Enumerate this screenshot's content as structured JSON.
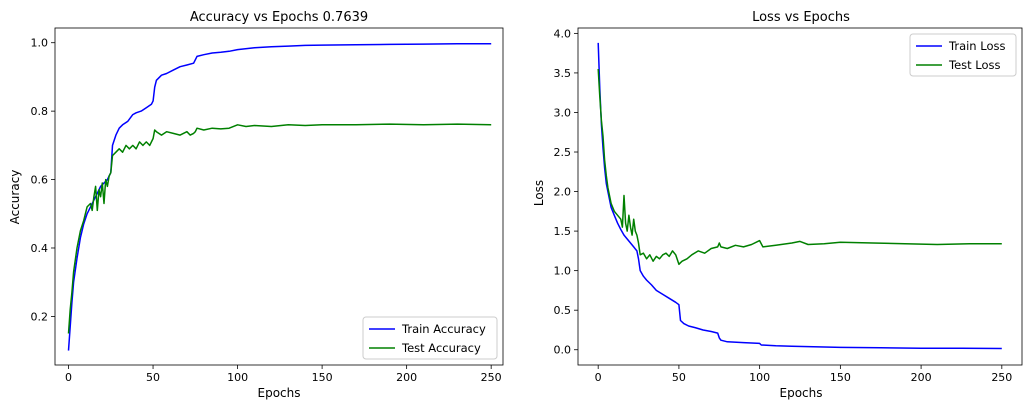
{
  "chart_data": [
    {
      "type": "line",
      "title": "Accuracy vs Epochs 0.7639",
      "xlabel": "Epochs",
      "ylabel": "Accuracy",
      "xlim": [
        -8,
        257
      ],
      "ylim": [
        0.058,
        1.043
      ],
      "xticks": [
        0,
        50,
        100,
        150,
        200,
        250
      ],
      "yticks": [
        0.2,
        0.4,
        0.6,
        0.8,
        1.0
      ],
      "ytick_labels": [
        "0.2",
        "0.4",
        "0.6",
        "0.8",
        "1.0"
      ],
      "grid": false,
      "legend": "lower-right",
      "series": [
        {
          "name": "Train Accuracy",
          "color": "#0000ff",
          "x": [
            0,
            1,
            2,
            3,
            5,
            7,
            9,
            11,
            13,
            15,
            17,
            19,
            21,
            23,
            24,
            25,
            26,
            28,
            30,
            32,
            35,
            38,
            40,
            43,
            46,
            49,
            50,
            51,
            52,
            55,
            58,
            62,
            66,
            70,
            74,
            75,
            76,
            80,
            85,
            90,
            95,
            100,
            110,
            120,
            130,
            140,
            150,
            170,
            190,
            210,
            230,
            250
          ],
          "y": [
            0.1,
            0.17,
            0.24,
            0.3,
            0.37,
            0.43,
            0.47,
            0.5,
            0.52,
            0.54,
            0.56,
            0.58,
            0.59,
            0.6,
            0.61,
            0.62,
            0.7,
            0.73,
            0.75,
            0.76,
            0.77,
            0.79,
            0.795,
            0.8,
            0.81,
            0.82,
            0.83,
            0.87,
            0.89,
            0.905,
            0.91,
            0.92,
            0.93,
            0.935,
            0.94,
            0.95,
            0.96,
            0.965,
            0.97,
            0.972,
            0.975,
            0.98,
            0.985,
            0.988,
            0.99,
            0.992,
            0.993,
            0.994,
            0.995,
            0.996,
            0.997,
            0.997
          ]
        },
        {
          "name": "Test Accuracy",
          "color": "#008000",
          "x": [
            0,
            1,
            2,
            3,
            5,
            7,
            9,
            11,
            13,
            14,
            15,
            16,
            17,
            18,
            19,
            20,
            21,
            22,
            23,
            24,
            25,
            26,
            28,
            30,
            32,
            34,
            36,
            38,
            40,
            42,
            44,
            46,
            48,
            50,
            51,
            52,
            55,
            58,
            62,
            66,
            70,
            72,
            74,
            75,
            76,
            80,
            85,
            90,
            95,
            100,
            105,
            110,
            120,
            130,
            140,
            150,
            170,
            190,
            210,
            230,
            250
          ],
          "y": [
            0.15,
            0.22,
            0.27,
            0.33,
            0.4,
            0.45,
            0.48,
            0.52,
            0.53,
            0.51,
            0.55,
            0.58,
            0.51,
            0.57,
            0.55,
            0.59,
            0.53,
            0.6,
            0.58,
            0.61,
            0.62,
            0.67,
            0.68,
            0.69,
            0.68,
            0.7,
            0.69,
            0.7,
            0.69,
            0.71,
            0.7,
            0.71,
            0.7,
            0.72,
            0.745,
            0.74,
            0.73,
            0.74,
            0.735,
            0.73,
            0.74,
            0.73,
            0.735,
            0.74,
            0.75,
            0.745,
            0.75,
            0.748,
            0.75,
            0.76,
            0.755,
            0.758,
            0.755,
            0.76,
            0.758,
            0.76,
            0.76,
            0.762,
            0.76,
            0.762,
            0.76
          ]
        }
      ]
    },
    {
      "type": "line",
      "title": "Loss vs Epochs",
      "xlabel": "Epochs",
      "ylabel": "Loss",
      "xlim": [
        -12.5,
        262.5
      ],
      "ylim": [
        -0.193,
        4.068
      ],
      "xticks": [
        0,
        50,
        100,
        150,
        200,
        250
      ],
      "yticks": [
        0.0,
        0.5,
        1.0,
        1.5,
        2.0,
        2.5,
        3.0,
        3.5,
        4.0
      ],
      "ytick_labels": [
        "0.0",
        "0.5",
        "1.0",
        "1.5",
        "2.0",
        "2.5",
        "3.0",
        "3.5",
        "4.0"
      ],
      "grid": false,
      "legend": "top-right",
      "series": [
        {
          "name": "Train Loss",
          "color": "#0000ff",
          "x": [
            0,
            1,
            2,
            3,
            4,
            5,
            6,
            7,
            8,
            10,
            12,
            14,
            16,
            18,
            20,
            22,
            24,
            25,
            26,
            28,
            30,
            33,
            36,
            40,
            44,
            48,
            50,
            51,
            53,
            56,
            60,
            65,
            70,
            74,
            75,
            76,
            80,
            90,
            100,
            101,
            110,
            120,
            130,
            140,
            150,
            175,
            200,
            225,
            250
          ],
          "y": [
            3.88,
            3.3,
            2.85,
            2.55,
            2.3,
            2.1,
            2.0,
            1.9,
            1.8,
            1.7,
            1.6,
            1.52,
            1.45,
            1.4,
            1.35,
            1.3,
            1.25,
            1.15,
            1.0,
            0.93,
            0.88,
            0.82,
            0.75,
            0.7,
            0.65,
            0.6,
            0.57,
            0.37,
            0.33,
            0.3,
            0.28,
            0.25,
            0.23,
            0.21,
            0.15,
            0.12,
            0.1,
            0.09,
            0.08,
            0.06,
            0.05,
            0.045,
            0.04,
            0.035,
            0.03,
            0.025,
            0.02,
            0.018,
            0.015
          ]
        },
        {
          "name": "Test Loss",
          "color": "#008000",
          "x": [
            0,
            1,
            2,
            3,
            4,
            5,
            6,
            7,
            8,
            10,
            12,
            14,
            15,
            16,
            17,
            18,
            19,
            20,
            21,
            22,
            23,
            24,
            25,
            26,
            28,
            30,
            32,
            34,
            36,
            38,
            40,
            42,
            44,
            46,
            48,
            50,
            51,
            52,
            55,
            58,
            62,
            66,
            70,
            74,
            75,
            76,
            80,
            85,
            90,
            95,
            100,
            102,
            110,
            120,
            125,
            130,
            140,
            150,
            170,
            190,
            210,
            230,
            250
          ],
          "y": [
            3.55,
            3.2,
            2.9,
            2.7,
            2.4,
            2.2,
            2.05,
            1.95,
            1.85,
            1.75,
            1.7,
            1.65,
            1.55,
            1.95,
            1.6,
            1.5,
            1.7,
            1.55,
            1.45,
            1.65,
            1.5,
            1.45,
            1.35,
            1.2,
            1.22,
            1.15,
            1.2,
            1.12,
            1.18,
            1.15,
            1.2,
            1.22,
            1.18,
            1.25,
            1.2,
            1.08,
            1.1,
            1.12,
            1.15,
            1.2,
            1.25,
            1.22,
            1.28,
            1.3,
            1.35,
            1.3,
            1.28,
            1.32,
            1.3,
            1.33,
            1.38,
            1.3,
            1.32,
            1.35,
            1.37,
            1.33,
            1.34,
            1.36,
            1.35,
            1.34,
            1.33,
            1.34,
            1.34
          ]
        }
      ]
    }
  ]
}
